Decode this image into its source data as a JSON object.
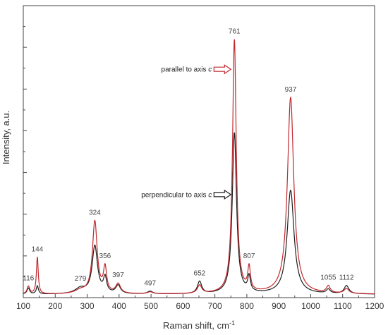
{
  "chart_data": {
    "type": "line",
    "xlabel": "Raman shift, cm",
    "xlabel_sup": "-1",
    "ylabel": "Intensity, a.u.",
    "xlim": [
      100,
      1200
    ],
    "ylim": [
      0,
      1.07
    ],
    "x_ticks": [
      100,
      200,
      300,
      400,
      500,
      600,
      700,
      800,
      900,
      1000,
      1100,
      1200
    ],
    "y_ticks_labeled": false,
    "grid": false,
    "series": [
      {
        "name": "parallel to axis c",
        "color": "#c0282d",
        "peaks": [
          {
            "x": 116,
            "h": 0.028,
            "w": 5
          },
          {
            "x": 144,
            "h": 0.135,
            "w": 3.5
          },
          {
            "x": 279,
            "h": 0.012,
            "w": 20
          },
          {
            "x": 324,
            "h": 0.265,
            "w": 9
          },
          {
            "x": 356,
            "h": 0.09,
            "w": 6
          },
          {
            "x": 397,
            "h": 0.035,
            "w": 9
          },
          {
            "x": 497,
            "h": 0.007,
            "w": 10
          },
          {
            "x": 652,
            "h": 0.03,
            "w": 8
          },
          {
            "x": 761,
            "h": 0.93,
            "w": 7
          },
          {
            "x": 807,
            "h": 0.085,
            "w": 5
          },
          {
            "x": 937,
            "h": 0.72,
            "w": 12
          },
          {
            "x": 1055,
            "h": 0.025,
            "w": 7
          },
          {
            "x": 1112,
            "h": 0.018,
            "w": 9
          }
        ]
      },
      {
        "name": "perpendicular to axis c",
        "color": "#1f1f1f",
        "peaks": [
          {
            "x": 116,
            "h": 0.022,
            "w": 5
          },
          {
            "x": 144,
            "h": 0.03,
            "w": 4
          },
          {
            "x": 279,
            "h": 0.02,
            "w": 20
          },
          {
            "x": 324,
            "h": 0.175,
            "w": 10
          },
          {
            "x": 356,
            "h": 0.055,
            "w": 6
          },
          {
            "x": 397,
            "h": 0.03,
            "w": 9
          },
          {
            "x": 497,
            "h": 0.01,
            "w": 10
          },
          {
            "x": 652,
            "h": 0.045,
            "w": 8
          },
          {
            "x": 761,
            "h": 0.59,
            "w": 8
          },
          {
            "x": 807,
            "h": 0.055,
            "w": 5
          },
          {
            "x": 937,
            "h": 0.38,
            "w": 13
          },
          {
            "x": 1055,
            "h": 0.015,
            "w": 7
          },
          {
            "x": 1112,
            "h": 0.03,
            "w": 9
          }
        ]
      }
    ],
    "peak_labels": [
      {
        "text": "116",
        "x": 116
      },
      {
        "text": "144",
        "x": 144
      },
      {
        "text": "279",
        "x": 279
      },
      {
        "text": "324",
        "x": 324
      },
      {
        "text": "356",
        "x": 356
      },
      {
        "text": "397",
        "x": 397
      },
      {
        "text": "497",
        "x": 497
      },
      {
        "text": "652",
        "x": 652
      },
      {
        "text": "761",
        "x": 761
      },
      {
        "text": "807",
        "x": 807
      },
      {
        "text": "937",
        "x": 937
      },
      {
        "text": "1055",
        "x": 1055
      },
      {
        "text": "1112",
        "x": 1112
      }
    ],
    "annotations": [
      {
        "text_prefix": "parallel to axis ",
        "text_italic": "c",
        "series": "parallel to axis c",
        "arrow_color": "#c0282d"
      },
      {
        "text_prefix": "perpendicular to axis ",
        "text_italic": "c",
        "series": "perpendicular to axis c",
        "arrow_color": "#1f1f1f"
      }
    ]
  }
}
